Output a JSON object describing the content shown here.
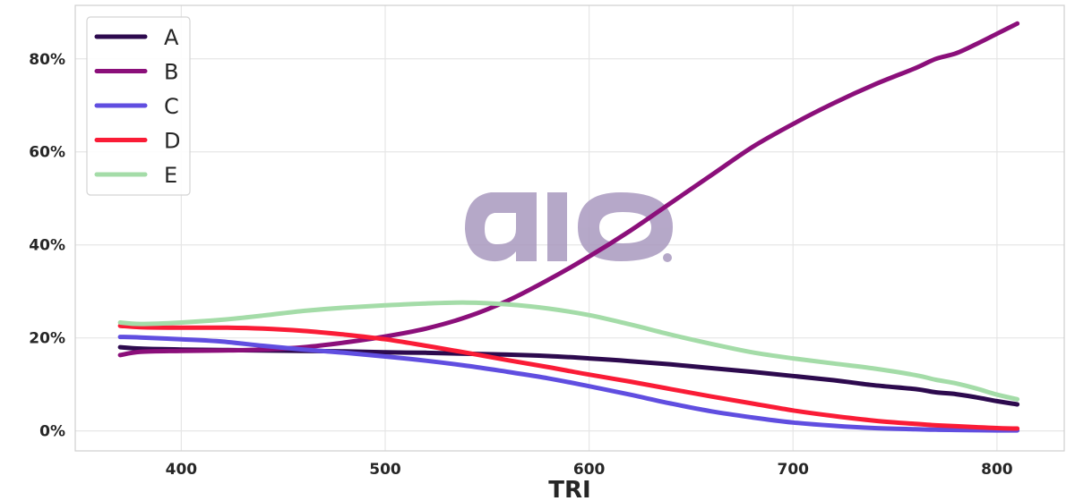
{
  "chart_data": {
    "type": "line",
    "title": "",
    "xlabel": "TRI",
    "ylabel": "",
    "xlim": [
      348,
      833
    ],
    "ylim": [
      -4.3,
      91.5
    ],
    "x_ticks": [
      400,
      500,
      600,
      700,
      800
    ],
    "y_ticks": [
      0,
      20,
      40,
      60,
      80
    ],
    "y_tick_format": "percent",
    "grid": true,
    "legend_position": "top-left",
    "x": [
      370,
      380,
      400,
      420,
      440,
      460,
      480,
      500,
      520,
      540,
      560,
      580,
      600,
      620,
      640,
      660,
      680,
      700,
      720,
      740,
      760,
      770,
      780,
      790,
      800,
      810
    ],
    "series": [
      {
        "name": "A",
        "color": "#2d0a4e",
        "values": [
          18.0,
          17.7,
          17.5,
          17.4,
          17.3,
          17.2,
          17.1,
          16.9,
          16.8,
          16.6,
          16.4,
          16.1,
          15.6,
          15.0,
          14.3,
          13.5,
          12.7,
          11.8,
          10.9,
          9.8,
          9.0,
          8.3,
          7.9,
          7.2,
          6.4,
          5.7
        ]
      },
      {
        "name": "B",
        "color": "#8b0f7a",
        "values": [
          16.3,
          17.0,
          17.2,
          17.3,
          17.5,
          18.0,
          19.0,
          20.3,
          22.0,
          24.5,
          28.0,
          32.5,
          37.5,
          43.0,
          49.0,
          55.0,
          61.0,
          66.0,
          70.5,
          74.5,
          78.0,
          80.0,
          81.2,
          83.2,
          85.4,
          87.6
        ]
      },
      {
        "name": "C",
        "color": "#604ee0",
        "values": [
          20.2,
          20.1,
          19.7,
          19.2,
          18.3,
          17.5,
          16.8,
          16.0,
          15.1,
          14.0,
          12.7,
          11.3,
          9.6,
          7.8,
          5.9,
          4.2,
          2.9,
          1.8,
          1.1,
          0.6,
          0.35,
          0.25,
          0.2,
          0.15,
          0.1,
          0.1
        ]
      },
      {
        "name": "D",
        "color": "#fa1c36",
        "values": [
          22.6,
          22.3,
          22.2,
          22.2,
          22.0,
          21.5,
          20.7,
          19.7,
          18.3,
          16.8,
          15.2,
          13.7,
          12.1,
          10.6,
          9.0,
          7.4,
          5.9,
          4.4,
          3.2,
          2.2,
          1.5,
          1.2,
          1.0,
          0.8,
          0.6,
          0.5
        ]
      },
      {
        "name": "E",
        "color": "#a4dca8",
        "values": [
          23.3,
          23.0,
          23.3,
          23.9,
          24.8,
          25.8,
          26.5,
          27.0,
          27.4,
          27.6,
          27.2,
          26.3,
          24.9,
          22.9,
          20.7,
          18.7,
          16.9,
          15.6,
          14.5,
          13.4,
          12.0,
          11.0,
          10.2,
          9.1,
          7.8,
          6.8
        ]
      }
    ]
  },
  "watermark": {
    "text": "aio",
    "color": "#a999bf"
  }
}
